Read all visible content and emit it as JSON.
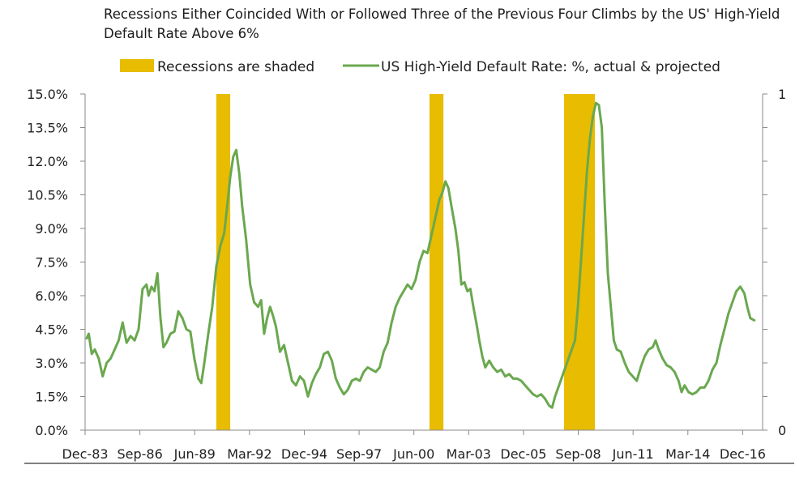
{
  "colors": {
    "series": "#6aa84f",
    "recession": "#e8bc00",
    "axis": "#8a8a8a",
    "baseline": "#000000"
  },
  "chart_data": {
    "type": "line",
    "title": "Recessions Either Coincided With or Followed Three of the Previous Four Climbs by the US' High-Yield Default Rate Above 6%",
    "legend": {
      "placement": "top",
      "shade_label": "Recessions are shaded",
      "series_label": "US High-Yield Default Rate: %, actual & projected"
    },
    "y_left": {
      "ticks": [
        "15.0%",
        "13.5%",
        "12.0%",
        "10.5%",
        "9.0%",
        "7.5%",
        "6.0%",
        "4.5%",
        "3.0%",
        "1.5%",
        "0.0%"
      ],
      "min": 0,
      "max": 15
    },
    "y_right": {
      "top": "1",
      "bottom": "0"
    },
    "x_range": [
      1983.917,
      2017.917
    ],
    "x_ticks": [
      {
        "t": 1983.917,
        "label": "Dec-83"
      },
      {
        "t": 1986.667,
        "label": "Sep-86"
      },
      {
        "t": 1989.417,
        "label": "Jun-89"
      },
      {
        "t": 1992.167,
        "label": "Mar-92"
      },
      {
        "t": 1994.917,
        "label": "Dec-94"
      },
      {
        "t": 1997.667,
        "label": "Sep-97"
      },
      {
        "t": 2000.417,
        "label": "Jun-00"
      },
      {
        "t": 2003.167,
        "label": "Mar-03"
      },
      {
        "t": 2005.917,
        "label": "Dec-05"
      },
      {
        "t": 2008.667,
        "label": "Sep-08"
      },
      {
        "t": 2011.417,
        "label": "Jun-11"
      },
      {
        "t": 2014.167,
        "label": "Mar-14"
      },
      {
        "t": 2016.917,
        "label": "Dec-16"
      }
    ],
    "recessions": [
      {
        "start": 1990.5,
        "end": 1991.2
      },
      {
        "start": 2001.2,
        "end": 2001.9
      },
      {
        "start": 2007.95,
        "end": 2009.5
      }
    ],
    "series": [
      {
        "name": "US High-Yield Default Rate: %, actual & projected",
        "points": [
          [
            1984.0,
            4.1
          ],
          [
            1984.1,
            4.3
          ],
          [
            1984.25,
            3.4
          ],
          [
            1984.4,
            3.6
          ],
          [
            1984.6,
            3.2
          ],
          [
            1984.8,
            2.4
          ],
          [
            1985.0,
            3.0
          ],
          [
            1985.2,
            3.2
          ],
          [
            1985.4,
            3.6
          ],
          [
            1985.6,
            4.0
          ],
          [
            1985.8,
            4.8
          ],
          [
            1986.0,
            3.9
          ],
          [
            1986.2,
            4.2
          ],
          [
            1986.4,
            4.0
          ],
          [
            1986.6,
            4.5
          ],
          [
            1986.8,
            6.3
          ],
          [
            1987.0,
            6.5
          ],
          [
            1987.1,
            6.0
          ],
          [
            1987.25,
            6.4
          ],
          [
            1987.4,
            6.2
          ],
          [
            1987.55,
            7.0
          ],
          [
            1987.7,
            5.0
          ],
          [
            1987.85,
            3.7
          ],
          [
            1988.0,
            3.9
          ],
          [
            1988.2,
            4.3
          ],
          [
            1988.4,
            4.4
          ],
          [
            1988.6,
            5.3
          ],
          [
            1988.8,
            5.0
          ],
          [
            1989.0,
            4.5
          ],
          [
            1989.2,
            4.4
          ],
          [
            1989.4,
            3.2
          ],
          [
            1989.6,
            2.3
          ],
          [
            1989.75,
            2.1
          ],
          [
            1989.9,
            3.0
          ],
          [
            1990.1,
            4.3
          ],
          [
            1990.3,
            5.5
          ],
          [
            1990.5,
            7.3
          ],
          [
            1990.7,
            8.2
          ],
          [
            1990.9,
            8.8
          ],
          [
            1991.05,
            10.0
          ],
          [
            1991.2,
            11.3
          ],
          [
            1991.35,
            12.2
          ],
          [
            1991.5,
            12.5
          ],
          [
            1991.65,
            11.5
          ],
          [
            1991.8,
            10.0
          ],
          [
            1992.0,
            8.5
          ],
          [
            1992.2,
            6.5
          ],
          [
            1992.4,
            5.7
          ],
          [
            1992.6,
            5.5
          ],
          [
            1992.75,
            5.8
          ],
          [
            1992.9,
            4.3
          ],
          [
            1993.05,
            5.0
          ],
          [
            1993.2,
            5.5
          ],
          [
            1993.35,
            5.1
          ],
          [
            1993.5,
            4.6
          ],
          [
            1993.7,
            3.5
          ],
          [
            1993.9,
            3.8
          ],
          [
            1994.1,
            3.0
          ],
          [
            1994.3,
            2.2
          ],
          [
            1994.5,
            2.0
          ],
          [
            1994.7,
            2.4
          ],
          [
            1994.9,
            2.2
          ],
          [
            1995.1,
            1.5
          ],
          [
            1995.3,
            2.1
          ],
          [
            1995.5,
            2.5
          ],
          [
            1995.7,
            2.8
          ],
          [
            1995.9,
            3.4
          ],
          [
            1996.1,
            3.5
          ],
          [
            1996.3,
            3.1
          ],
          [
            1996.5,
            2.3
          ],
          [
            1996.7,
            1.9
          ],
          [
            1996.9,
            1.6
          ],
          [
            1997.1,
            1.8
          ],
          [
            1997.3,
            2.2
          ],
          [
            1997.5,
            2.3
          ],
          [
            1997.7,
            2.2
          ],
          [
            1997.9,
            2.6
          ],
          [
            1998.1,
            2.8
          ],
          [
            1998.3,
            2.7
          ],
          [
            1998.5,
            2.6
          ],
          [
            1998.7,
            2.8
          ],
          [
            1998.9,
            3.5
          ],
          [
            1999.1,
            3.9
          ],
          [
            1999.3,
            4.8
          ],
          [
            1999.5,
            5.5
          ],
          [
            1999.7,
            5.9
          ],
          [
            1999.9,
            6.2
          ],
          [
            2000.1,
            6.5
          ],
          [
            2000.3,
            6.3
          ],
          [
            2000.5,
            6.7
          ],
          [
            2000.7,
            7.5
          ],
          [
            2000.9,
            8.0
          ],
          [
            2001.1,
            7.9
          ],
          [
            2001.3,
            8.7
          ],
          [
            2001.5,
            9.5
          ],
          [
            2001.7,
            10.3
          ],
          [
            2001.85,
            10.6
          ],
          [
            2002.0,
            11.1
          ],
          [
            2002.15,
            10.8
          ],
          [
            2002.3,
            10.0
          ],
          [
            2002.5,
            9.0
          ],
          [
            2002.65,
            8.0
          ],
          [
            2002.8,
            6.5
          ],
          [
            2002.95,
            6.6
          ],
          [
            2003.1,
            6.2
          ],
          [
            2003.25,
            6.3
          ],
          [
            2003.4,
            5.5
          ],
          [
            2003.55,
            4.8
          ],
          [
            2003.7,
            4.0
          ],
          [
            2003.85,
            3.3
          ],
          [
            2004.0,
            2.8
          ],
          [
            2004.2,
            3.1
          ],
          [
            2004.4,
            2.8
          ],
          [
            2004.6,
            2.6
          ],
          [
            2004.8,
            2.7
          ],
          [
            2005.0,
            2.4
          ],
          [
            2005.2,
            2.5
          ],
          [
            2005.4,
            2.3
          ],
          [
            2005.6,
            2.3
          ],
          [
            2005.8,
            2.2
          ],
          [
            2006.0,
            2.0
          ],
          [
            2006.2,
            1.8
          ],
          [
            2006.4,
            1.6
          ],
          [
            2006.6,
            1.5
          ],
          [
            2006.8,
            1.6
          ],
          [
            2007.0,
            1.4
          ],
          [
            2007.2,
            1.1
          ],
          [
            2007.35,
            1.0
          ],
          [
            2007.5,
            1.5
          ],
          [
            2007.7,
            2.0
          ],
          [
            2007.9,
            2.5
          ],
          [
            2008.1,
            3.0
          ],
          [
            2008.3,
            3.5
          ],
          [
            2008.5,
            4.0
          ],
          [
            2008.65,
            5.5
          ],
          [
            2008.8,
            7.5
          ],
          [
            2008.95,
            9.5
          ],
          [
            2009.1,
            11.5
          ],
          [
            2009.25,
            13.0
          ],
          [
            2009.4,
            14.0
          ],
          [
            2009.55,
            14.6
          ],
          [
            2009.7,
            14.5
          ],
          [
            2009.85,
            13.5
          ],
          [
            2010.0,
            10.0
          ],
          [
            2010.15,
            7.0
          ],
          [
            2010.3,
            5.5
          ],
          [
            2010.45,
            4.0
          ],
          [
            2010.6,
            3.6
          ],
          [
            2010.8,
            3.5
          ],
          [
            2011.0,
            3.0
          ],
          [
            2011.2,
            2.6
          ],
          [
            2011.4,
            2.4
          ],
          [
            2011.6,
            2.2
          ],
          [
            2011.8,
            2.8
          ],
          [
            2012.0,
            3.3
          ],
          [
            2012.2,
            3.6
          ],
          [
            2012.4,
            3.7
          ],
          [
            2012.55,
            4.0
          ],
          [
            2012.7,
            3.6
          ],
          [
            2012.9,
            3.2
          ],
          [
            2013.1,
            2.9
          ],
          [
            2013.3,
            2.8
          ],
          [
            2013.5,
            2.6
          ],
          [
            2013.7,
            2.2
          ],
          [
            2013.85,
            1.7
          ],
          [
            2014.0,
            2.0
          ],
          [
            2014.2,
            1.7
          ],
          [
            2014.4,
            1.6
          ],
          [
            2014.6,
            1.7
          ],
          [
            2014.8,
            1.9
          ],
          [
            2015.0,
            1.9
          ],
          [
            2015.2,
            2.2
          ],
          [
            2015.4,
            2.7
          ],
          [
            2015.6,
            3.0
          ],
          [
            2015.8,
            3.8
          ],
          [
            2016.0,
            4.5
          ],
          [
            2016.2,
            5.2
          ],
          [
            2016.4,
            5.7
          ],
          [
            2016.6,
            6.2
          ],
          [
            2016.8,
            6.4
          ],
          [
            2017.0,
            6.1
          ],
          [
            2017.15,
            5.5
          ],
          [
            2017.3,
            5.0
          ],
          [
            2017.5,
            4.9
          ]
        ]
      }
    ]
  }
}
